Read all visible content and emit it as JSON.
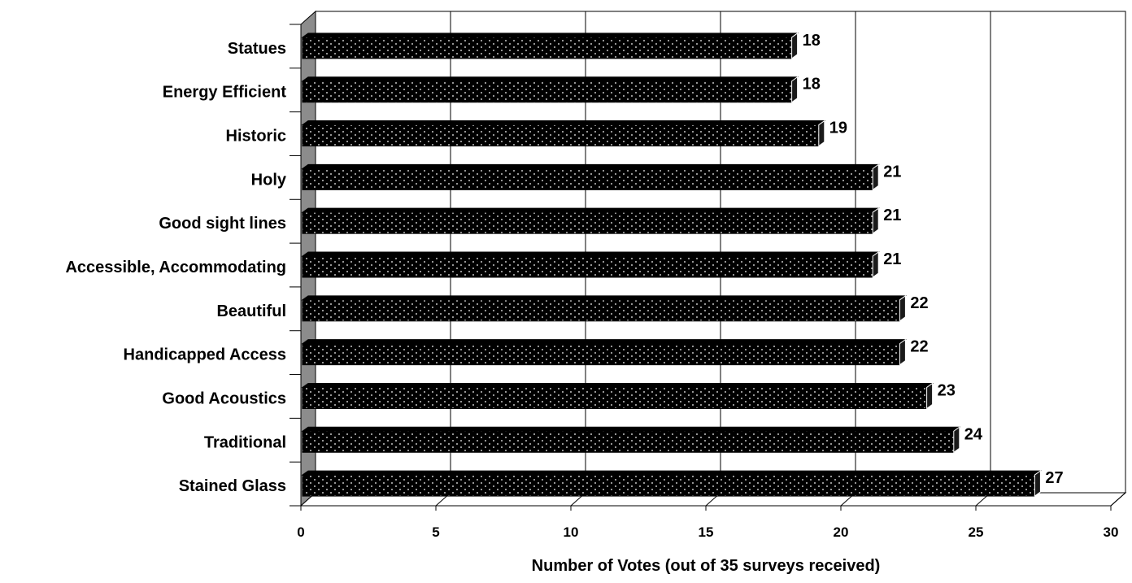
{
  "chart_data": {
    "type": "bar",
    "orientation": "horizontal",
    "title": "",
    "xlabel": "Number of Votes (out of 35 surveys received)",
    "ylabel": "",
    "xlim": [
      0,
      30
    ],
    "x_ticks": [
      "0",
      "5",
      "10",
      "15",
      "20",
      "25",
      "30"
    ],
    "grid": "vertical gridlines",
    "legend": "none",
    "style": "3D bars, black fill with white dot pattern",
    "colors": {
      "bar_fill": "#000000",
      "bar_dots": "#ffffff",
      "side_wall": "#8c8c8c",
      "gridline": "#000000"
    },
    "categories": [
      "Statues",
      "Energy Efficient",
      "Historic",
      "Holy",
      "Good sight lines",
      "Accessible, Accommodating",
      "Beautiful",
      "Handicapped Access",
      "Good Acoustics",
      "Traditional",
      "Stained Glass"
    ],
    "values": [
      18,
      18,
      19,
      21,
      21,
      21,
      22,
      22,
      23,
      24,
      27
    ],
    "data_labels": [
      "18",
      "18",
      "19",
      "21",
      "21",
      "21",
      "22",
      "22",
      "23",
      "24",
      "27"
    ]
  }
}
